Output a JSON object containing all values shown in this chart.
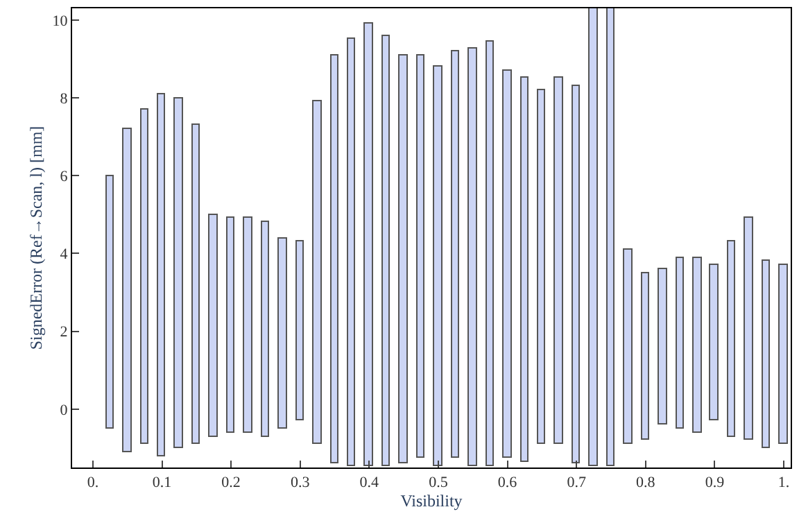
{
  "chart_data": {
    "type": "bar",
    "xlabel": "Visibility",
    "ylabel": "SignedError (Ref→Scan, l) [mm]",
    "x": [
      0.025,
      0.05,
      0.075,
      0.1,
      0.125,
      0.15,
      0.175,
      0.2,
      0.225,
      0.25,
      0.275,
      0.3,
      0.325,
      0.35,
      0.375,
      0.4,
      0.425,
      0.45,
      0.475,
      0.5,
      0.525,
      0.55,
      0.575,
      0.6,
      0.625,
      0.65,
      0.675,
      0.7,
      0.725,
      0.75,
      0.775,
      0.8,
      0.825,
      0.85,
      0.875,
      0.9,
      0.925,
      0.95,
      0.975,
      1.0
    ],
    "base": [
      -0.5,
      -1.1,
      -0.9,
      -1.2,
      -1.0,
      -0.9,
      -0.7,
      -0.6,
      -0.6,
      -0.7,
      -0.5,
      -0.3,
      -0.9,
      -1.4,
      -1.45,
      -1.45,
      -1.45,
      -1.4,
      -1.25,
      -1.45,
      -1.25,
      -1.45,
      -1.45,
      -1.25,
      -1.35,
      -0.9,
      -0.9,
      -1.4,
      -1.45,
      -1.45,
      -0.9,
      -0.8,
      -0.4,
      -0.5,
      -0.6,
      -0.3,
      -0.7,
      -0.8,
      -1.0,
      -0.9
    ],
    "values": [
      6.5,
      8.3,
      8.6,
      9.3,
      9.0,
      8.2,
      5.7,
      5.5,
      5.5,
      5.5,
      4.9,
      4.6,
      8.8,
      10.5,
      10.95,
      11.35,
      11.05,
      10.5,
      10.35,
      10.25,
      10.45,
      10.7,
      10.9,
      9.95,
      9.85,
      9.1,
      9.4,
      9.7,
      11.75,
      11.75,
      5.0,
      4.3,
      4.0,
      4.4,
      4.5,
      4.0,
      5.0,
      5.7,
      4.8,
      4.6
    ],
    "color": "#ccd5f5",
    "xlim": [
      -0.03,
      1.01
    ],
    "ylim": [
      -1.5,
      10.3
    ],
    "xticks": [
      {
        "value": 0,
        "label": "0."
      },
      0.1,
      0.2,
      0.3,
      0.4,
      0.5,
      0.6,
      0.7,
      0.8,
      0.9,
      {
        "value": 1,
        "label": "1."
      }
    ],
    "yticks": [
      0,
      2,
      4,
      6,
      8,
      10
    ]
  }
}
